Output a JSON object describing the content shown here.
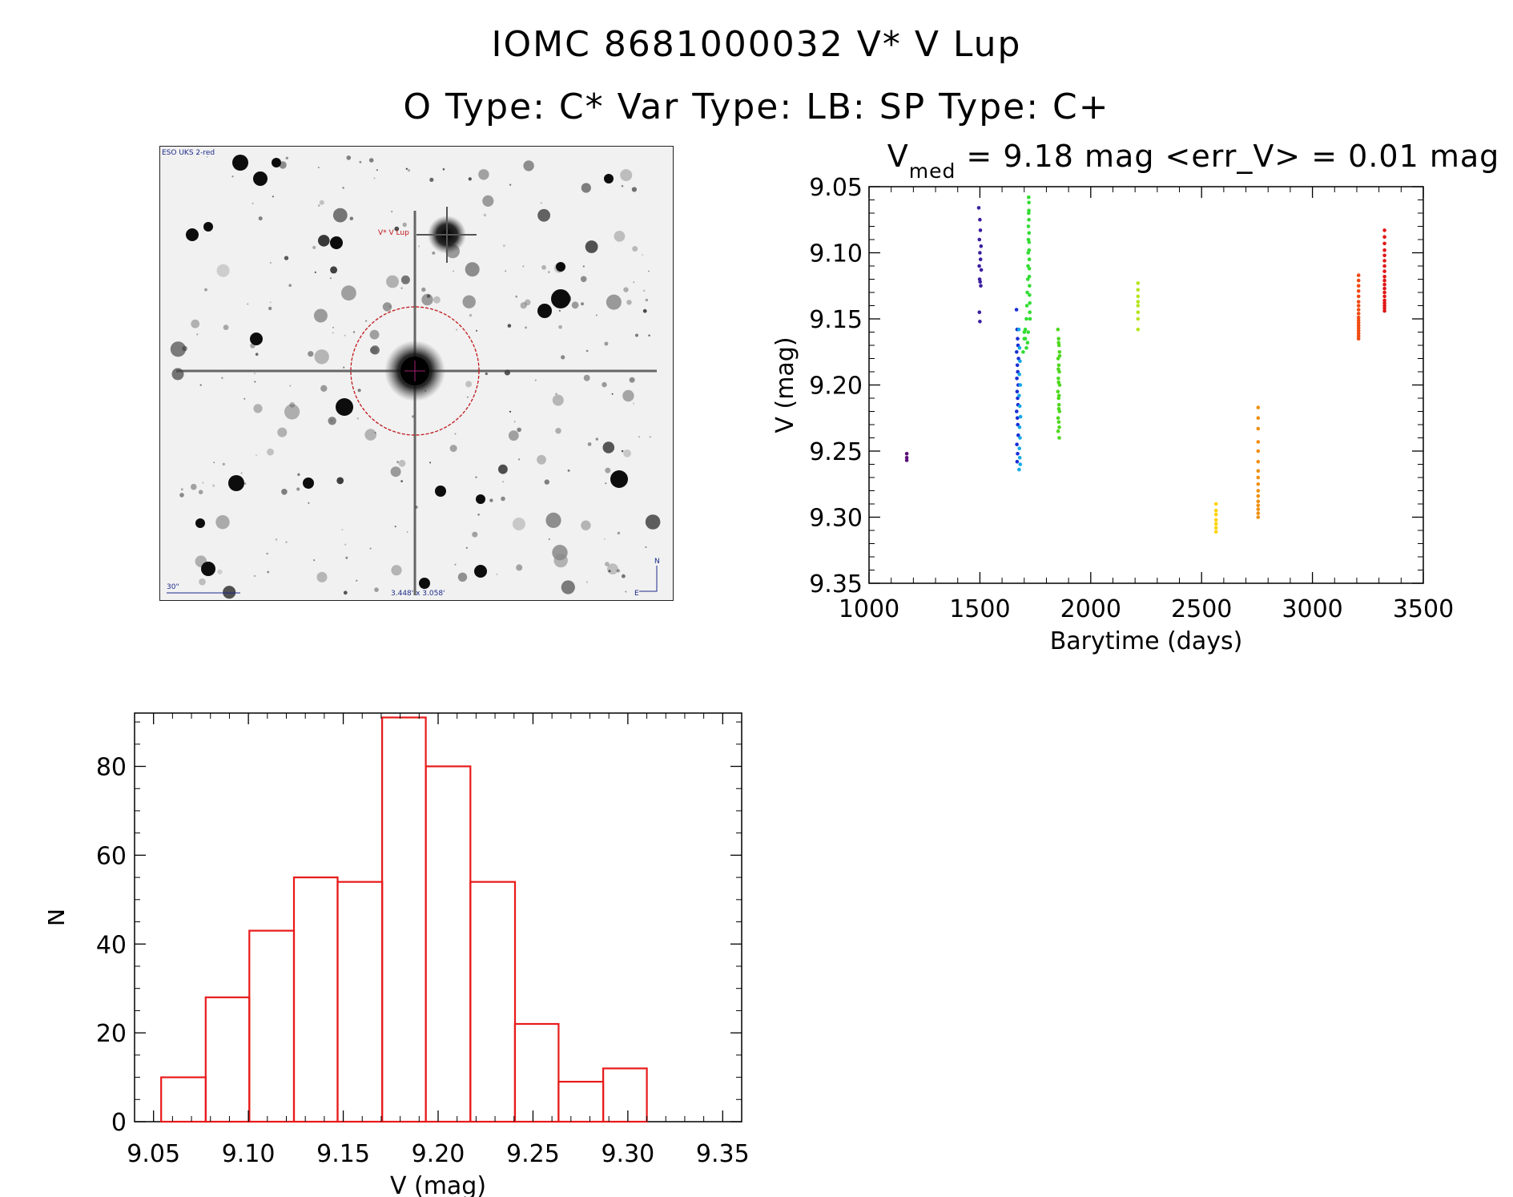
{
  "header": {
    "line1": "IOMC 8681000032    V* V Lup",
    "line2": "O Type: C*  Var Type: LB:  SP Type: C+"
  },
  "finder": {
    "survey_label": "ESO UKS 2-red",
    "target_label": "V* V Lup",
    "scale_label": "30\"",
    "size_label": "3.448' x 3.058'",
    "north_label": "N",
    "east_label": "E",
    "colors": {
      "target": "#c0161b",
      "text": "#1b2a8a"
    }
  },
  "chart_data": [
    {
      "type": "scatter",
      "title_main": "V",
      "title_sub": "med",
      "title_rest": " = 9.18 mag <err_V> = 0.01 mag",
      "xlabel": "Barytime (days)",
      "ylabel": "V (mag)",
      "xlim": [
        1000,
        3500
      ],
      "ylim": [
        9.35,
        9.05
      ],
      "y_inverted": true,
      "xticks": [
        1000,
        1500,
        2000,
        2500,
        3000,
        3500
      ],
      "xtick_labels": [
        "1000",
        "1500",
        "2000",
        "2500",
        "3000",
        "3500"
      ],
      "yticks": [
        9.05,
        9.1,
        9.15,
        9.2,
        9.25,
        9.3,
        9.35
      ],
      "ytick_labels": [
        "9.05",
        "9.10",
        "9.15",
        "9.20",
        "9.25",
        "9.30",
        "9.35"
      ],
      "series": [
        {
          "color": "#5a0f7a",
          "x": [
            1170,
            1170,
            1170
          ],
          "y": [
            9.252,
            9.255,
            9.257
          ]
        },
        {
          "color": "#3b1fa0",
          "x": [
            1495,
            1500,
            1502,
            1498,
            1505,
            1500,
            1503,
            1497,
            1506,
            1499,
            1501,
            1504,
            1498,
            1500
          ],
          "y": [
            9.066,
            9.075,
            9.083,
            9.09,
            9.095,
            9.1,
            9.105,
            9.11,
            9.113,
            9.12,
            9.122,
            9.125,
            9.145,
            9.152
          ]
        },
        {
          "color": "#1a2fd6",
          "x": [
            1665,
            1668,
            1670,
            1672,
            1666,
            1674,
            1669,
            1671,
            1667,
            1673,
            1668,
            1670,
            1672,
            1666,
            1669,
            1671,
            1673,
            1667,
            1670,
            1668
          ],
          "y": [
            9.143,
            9.158,
            9.165,
            9.17,
            9.175,
            9.18,
            9.185,
            9.19,
            9.195,
            9.2,
            9.205,
            9.21,
            9.215,
            9.22,
            9.225,
            9.23,
            9.238,
            9.245,
            9.252,
            9.258
          ]
        },
        {
          "color": "#14a9e6",
          "x": [
            1676,
            1679,
            1681,
            1678,
            1682,
            1677,
            1680,
            1683,
            1679,
            1681,
            1678,
            1680,
            1682,
            1677
          ],
          "y": [
            9.158,
            9.172,
            9.182,
            9.192,
            9.2,
            9.208,
            9.216,
            9.224,
            9.232,
            9.24,
            9.248,
            9.255,
            9.26,
            9.264
          ]
        },
        {
          "color": "#33dd33",
          "x": [
            1695,
            1700,
            1705,
            1710,
            1712,
            1714,
            1716,
            1717,
            1718,
            1719,
            1719,
            1720,
            1720,
            1721,
            1721,
            1721,
            1722,
            1722,
            1722,
            1723,
            1723,
            1723,
            1724,
            1724,
            1725,
            1725,
            1726,
            1718,
            1715,
            1710,
            1705,
            1700
          ],
          "y": [
            9.175,
            9.165,
            9.158,
            9.15,
            9.14,
            9.13,
            9.12,
            9.11,
            9.1,
            9.09,
            9.08,
            9.07,
            9.058,
            9.062,
            9.068,
            9.075,
            9.085,
            9.092,
            9.098,
            9.105,
            9.112,
            9.118,
            9.125,
            9.132,
            9.138,
            9.145,
            9.15,
            9.16,
            9.168,
            9.172,
            9.165,
            9.16
          ]
        },
        {
          "color": "#4fd81f",
          "x": [
            1852,
            1855,
            1857,
            1859,
            1853,
            1856,
            1858,
            1854,
            1860,
            1852,
            1855,
            1857,
            1859,
            1853,
            1856,
            1858,
            1854,
            1860,
            1855,
            1857,
            1856,
            1853,
            1858,
            1855
          ],
          "y": [
            9.158,
            9.165,
            9.17,
            9.175,
            9.18,
            9.185,
            9.19,
            9.195,
            9.2,
            9.205,
            9.21,
            9.215,
            9.22,
            9.225,
            9.228,
            9.232,
            9.188,
            9.178,
            9.198,
            9.208,
            9.218,
            9.235,
            9.24,
            9.168
          ]
        },
        {
          "color": "#b5e61d",
          "x": [
            2213,
            2213,
            2213,
            2213,
            2213,
            2213,
            2213,
            2213
          ],
          "y": [
            9.123,
            9.128,
            9.133,
            9.137,
            9.14,
            9.145,
            9.15,
            9.158
          ]
        },
        {
          "color": "#ffd200",
          "x": [
            2565,
            2565,
            2565,
            2565,
            2565,
            2565,
            2565
          ],
          "y": [
            9.29,
            9.295,
            9.298,
            9.302,
            9.305,
            9.308,
            9.311
          ]
        },
        {
          "color": "#f09010",
          "x": [
            2755,
            2755,
            2755,
            2755,
            2755,
            2755,
            2755,
            2755,
            2755,
            2755,
            2755,
            2755,
            2755,
            2755,
            2755,
            2755
          ],
          "y": [
            9.217,
            9.225,
            9.233,
            9.243,
            9.25,
            9.258,
            9.265,
            9.27,
            9.275,
            9.28,
            9.284,
            9.288,
            9.291,
            9.294,
            9.297,
            9.3
          ]
        },
        {
          "color": "#f04a12",
          "x": [
            3208,
            3208,
            3208,
            3208,
            3208,
            3208,
            3208,
            3208,
            3208,
            3208,
            3208,
            3208,
            3208,
            3208,
            3208,
            3208,
            3208,
            3208
          ],
          "y": [
            9.117,
            9.121,
            9.125,
            9.129,
            9.133,
            9.137,
            9.14,
            9.143,
            9.146,
            9.149,
            9.151,
            9.153,
            9.155,
            9.157,
            9.159,
            9.161,
            9.163,
            9.165
          ]
        },
        {
          "color": "#e01818",
          "x": [
            3325,
            3325,
            3325,
            3325,
            3325,
            3325,
            3325,
            3325,
            3325,
            3325,
            3325,
            3325,
            3325,
            3325,
            3325,
            3325,
            3325,
            3325,
            3325
          ],
          "y": [
            9.083,
            9.088,
            9.093,
            9.098,
            9.102,
            9.106,
            9.11,
            9.114,
            9.118,
            9.121,
            9.124,
            9.127,
            9.13,
            9.133,
            9.136,
            9.138,
            9.14,
            9.142,
            9.144
          ]
        }
      ]
    },
    {
      "type": "bar",
      "subtype": "histogram",
      "xlabel": "V (mag)",
      "ylabel": "N",
      "xlim": [
        9.04,
        9.36
      ],
      "ylim": [
        0,
        92
      ],
      "bin_edges": [
        9.054,
        9.0775,
        9.1005,
        9.124,
        9.147,
        9.1705,
        9.1935,
        9.217,
        9.2405,
        9.2635,
        9.287,
        9.31
      ],
      "values": [
        10,
        28,
        43,
        55,
        54,
        91,
        80,
        54,
        22,
        9,
        12
      ],
      "color": "#e81a1a",
      "xticks": [
        9.05,
        9.1,
        9.15,
        9.2,
        9.25,
        9.3,
        9.35
      ],
      "xtick_labels": [
        "9.05",
        "9.10",
        "9.15",
        "9.20",
        "9.25",
        "9.30",
        "9.35"
      ],
      "yticks": [
        0,
        20,
        40,
        60,
        80
      ],
      "ytick_labels": [
        "0",
        "20",
        "40",
        "60",
        "80"
      ]
    }
  ]
}
